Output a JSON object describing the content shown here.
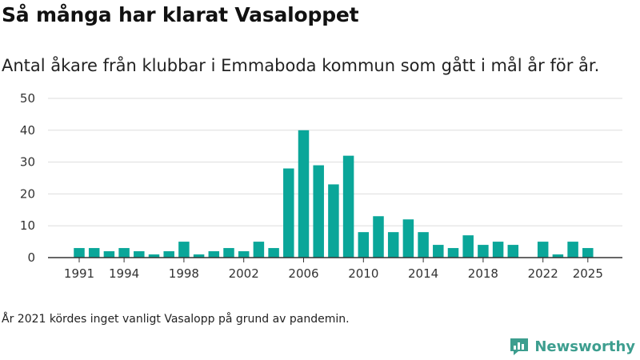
{
  "title": "Så många har klarat Vasaloppet",
  "subtitle": "Antal åkare från klubbar i Emmaboda kommun som gått i mål år för år.",
  "footnote": "År 2021 kördes inget vanligt Vasalopp på grund av pandemin.",
  "brand": {
    "name": "Newsworthy",
    "logo_icon": "newsworthy-chart-logo-icon"
  },
  "colors": {
    "bar": "#0aa699",
    "grid": "#dddddd",
    "axis": "#333333",
    "brand": "#3d9e8f"
  },
  "chart_data": {
    "type": "bar",
    "categories": [
      1991,
      1992,
      1993,
      1994,
      1995,
      1996,
      1997,
      1998,
      1999,
      2000,
      2001,
      2002,
      2003,
      2004,
      2005,
      2006,
      2007,
      2008,
      2009,
      2010,
      2011,
      2012,
      2013,
      2014,
      2015,
      2016,
      2017,
      2018,
      2019,
      2020,
      2021,
      2022,
      2023,
      2024,
      2025
    ],
    "values": [
      3,
      3,
      2,
      3,
      2,
      1,
      2,
      5,
      1,
      2,
      3,
      2,
      5,
      3,
      28,
      40,
      29,
      23,
      32,
      8,
      13,
      8,
      12,
      8,
      4,
      3,
      7,
      4,
      5,
      4,
      0,
      5,
      1,
      5,
      3
    ],
    "x_tick_labels": [
      "1991",
      "1994",
      "1998",
      "2002",
      "2006",
      "2010",
      "2014",
      "2018",
      "2022",
      "2025"
    ],
    "y_ticks": [
      0,
      10,
      20,
      30,
      40,
      50
    ],
    "ylim": [
      0,
      50
    ],
    "grid": true,
    "legend": "none"
  }
}
